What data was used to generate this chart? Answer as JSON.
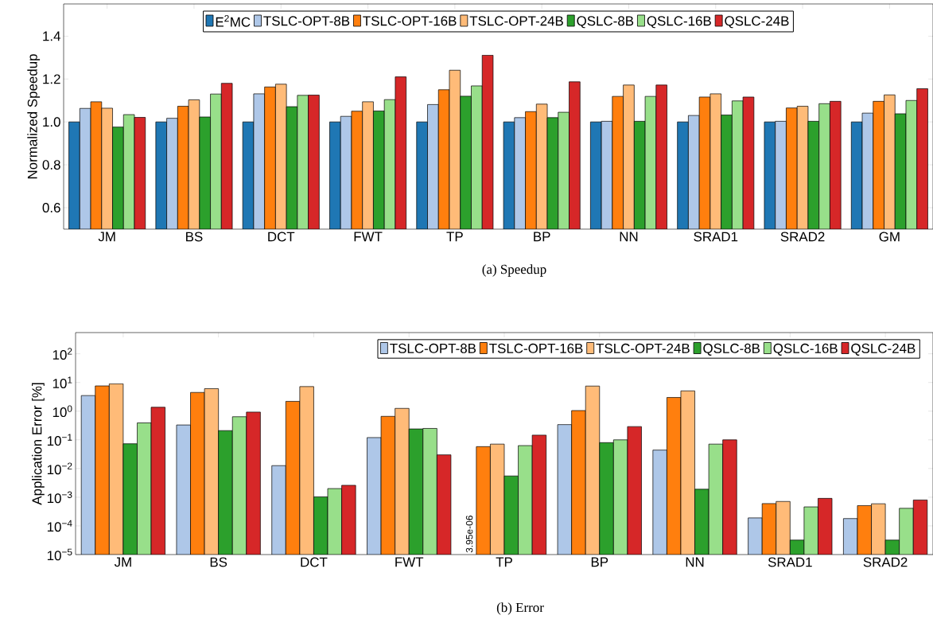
{
  "chart_data": [
    {
      "type": "bar",
      "ylabel": "Normalized Speedup",
      "categories": [
        "JM",
        "BS",
        "DCT",
        "FWT",
        "TP",
        "BP",
        "NN",
        "SRAD1",
        "SRAD2",
        "GM"
      ],
      "series": [
        {
          "name": "E$^{2}$MC",
          "color": "#1f77b4",
          "values": [
            1.0,
            1.0,
            1.0,
            1.0,
            1.0,
            1.0,
            1.0,
            1.0,
            1.0,
            1.0
          ]
        },
        {
          "name": "TSLC-OPT-8B",
          "color": "#aec7e8",
          "values": [
            1.063,
            1.017,
            1.131,
            1.026,
            1.081,
            1.02,
            1.003,
            1.03,
            1.003,
            1.041
          ]
        },
        {
          "name": "TSLC-OPT-16B",
          "color": "#ff7f0e",
          "values": [
            1.094,
            1.073,
            1.163,
            1.05,
            1.15,
            1.048,
            1.119,
            1.116,
            1.065,
            1.096
          ]
        },
        {
          "name": "TSLC-OPT-24B",
          "color": "#ffbb78",
          "values": [
            1.064,
            1.103,
            1.176,
            1.094,
            1.241,
            1.083,
            1.172,
            1.131,
            1.073,
            1.126
          ]
        },
        {
          "name": "QSLC-8B",
          "color": "#2ca02c",
          "values": [
            0.976,
            1.023,
            1.071,
            1.051,
            1.12,
            1.02,
            1.003,
            1.032,
            1.003,
            1.038
          ]
        },
        {
          "name": "QSLC-16B",
          "color": "#98df8a",
          "values": [
            1.034,
            1.13,
            1.124,
            1.104,
            1.168,
            1.045,
            1.119,
            1.098,
            1.085,
            1.1
          ]
        },
        {
          "name": "QSLC-24B",
          "color": "#d62728",
          "values": [
            1.021,
            1.18,
            1.125,
            1.21,
            1.311,
            1.187,
            1.172,
            1.116,
            1.096,
            1.155
          ]
        }
      ],
      "ylim": [
        0.5,
        1.55
      ],
      "yticks": [
        0.6,
        0.8,
        {
          "value": 1.0,
          "label": "1.0"
        },
        1.2,
        1.4
      ],
      "legend": "top",
      "annotations": [
        "(a) Speedup"
      ]
    },
    {
      "type": "bar",
      "ylabel": "Application Error [%]",
      "categories": [
        "JM",
        "BS",
        "DCT",
        "FWT",
        "TP",
        "BP",
        "NN",
        "SRAD1",
        "SRAD2"
      ],
      "log": true,
      "series": [
        {
          "name": "TSLC-OPT-8B",
          "color": "#aec7e8",
          "values": [
            3.5,
            0.33,
            0.0126,
            0.12,
            null,
            0.34,
            0.044,
            0.00019,
            0.00018
          ]
        },
        {
          "name": "TSLC-OPT-16B",
          "color": "#ff7f0e",
          "values": [
            7.6,
            4.5,
            2.2,
            0.66,
            0.058,
            1.05,
            3.0,
            0.0006,
            0.00051
          ]
        },
        {
          "name": "TSLC-OPT-24B",
          "color": "#ffbb78",
          "values": [
            9.0,
            6.1,
            7.2,
            1.25,
            0.071,
            7.5,
            5.1,
            0.00071,
            0.00059
          ]
        },
        {
          "name": "QSLC-8B",
          "color": "#2ca02c",
          "values": [
            0.073,
            0.21,
            0.00103,
            0.24,
            0.0055,
            0.08,
            0.0019,
            3.2e-05,
            3.2e-05
          ]
        },
        {
          "name": "QSLC-16B",
          "color": "#98df8a",
          "values": [
            0.39,
            0.64,
            0.002,
            0.25,
            0.063,
            0.1,
            0.071,
            0.00046,
            0.00041
          ]
        },
        {
          "name": "QSLC-24B",
          "color": "#d62728",
          "values": [
            1.37,
            0.93,
            0.0026,
            0.03,
            0.146,
            0.29,
            0.1,
            0.00091,
            0.0008
          ]
        }
      ],
      "ylim": [
        1e-05,
        550
      ],
      "yticks": [
        {
          "value": 1e-05,
          "label": "10$^{−5}$"
        },
        {
          "value": 0.0001,
          "label": "10$^{−4}$"
        },
        {
          "value": 0.001,
          "label": "10$^{−3}$"
        },
        {
          "value": 0.01,
          "label": "10$^{−2}$"
        },
        {
          "value": 0.1,
          "label": "10$^{−1}$"
        },
        {
          "value": 1,
          "label": "10$^{0}$"
        },
        {
          "value": 10,
          "label": "10$^{1}$"
        },
        {
          "value": 100,
          "label": "10$^{2}$"
        }
      ],
      "legend": "top right",
      "annotations": [
        "3.95e-06",
        "(b) Error"
      ]
    }
  ]
}
